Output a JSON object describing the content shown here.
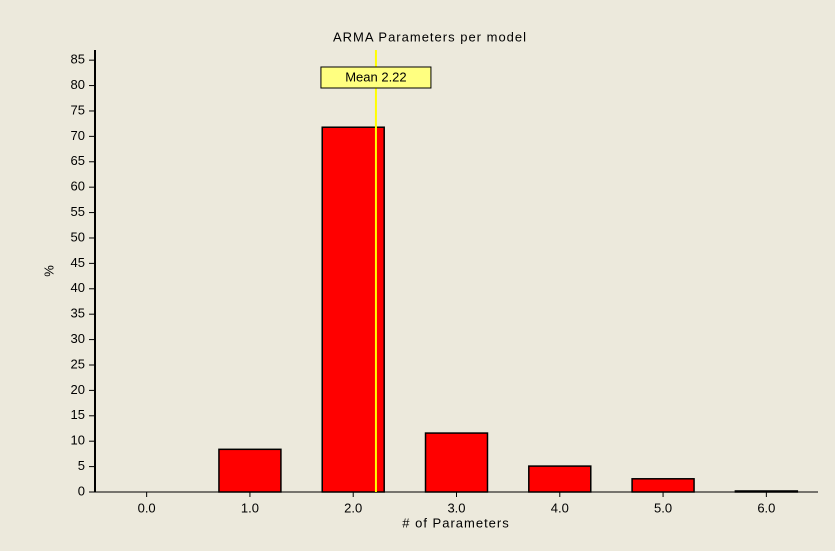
{
  "chart_data": {
    "type": "bar",
    "title": "ARMA Parameters per model",
    "x_label": "# of Parameters",
    "y_label": "%",
    "categories": [
      "0.0",
      "1.0",
      "2.0",
      "3.0",
      "4.0",
      "5.0",
      "6.0"
    ],
    "values": [
      0,
      8.4,
      71.8,
      11.6,
      5.1,
      2.6,
      0.2
    ],
    "color": "#ff0000",
    "mean": 2.22,
    "mean_label": "Mean 2.22",
    "mean_color": "#ffff00",
    "ylim": [
      0,
      87
    ],
    "yticks": [
      0,
      5,
      10,
      15,
      20,
      25,
      30,
      35,
      40,
      45,
      50,
      55,
      60,
      65,
      70,
      75,
      80,
      85
    ],
    "grid": false
  }
}
